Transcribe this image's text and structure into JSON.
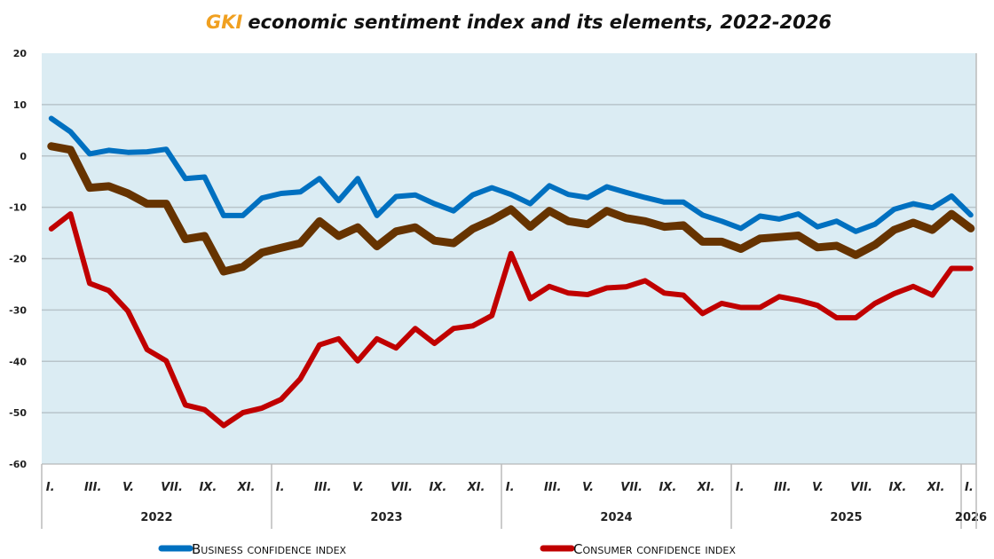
{
  "chart_data": {
    "type": "line",
    "title_brand": "GKI",
    "title": "economic sentiment index and its elements, 2022-2026",
    "ylim": [
      -60,
      20
    ],
    "yticks": [
      20,
      10,
      0,
      -10,
      -20,
      -30,
      -40,
      -50,
      -60
    ],
    "grid": true,
    "legend_position": "bottom",
    "years": [
      "2022",
      "2023",
      "2024",
      "2025",
      "2026"
    ],
    "month_labels": [
      "I.",
      "III.",
      "V.",
      "VII.",
      "IX.",
      "XI."
    ],
    "x_start": "2022-01",
    "x_end": "2026-01",
    "series": [
      {
        "name": "Business confidence index",
        "color": "#0070c0",
        "in_legend": true,
        "values": [
          7.3,
          4.7,
          0.4,
          1.1,
          0.7,
          0.8,
          1.3,
          -4.4,
          -4.1,
          -11.6,
          -11.6,
          -8.2,
          -7.3,
          -7.0,
          -4.4,
          -8.7,
          -4.4,
          -11.6,
          -7.9,
          -7.6,
          -9.3,
          -10.7,
          -7.6,
          -6.2,
          -7.5,
          -9.3,
          -5.8,
          -7.5,
          -8.1,
          -6.0,
          -7.1,
          -8.1,
          -9.0,
          -9.0,
          -11.5,
          -12.7,
          -14.1,
          -11.7,
          -12.3,
          -11.3,
          -13.8,
          -12.7,
          -14.7,
          -13.3,
          -10.4,
          -9.3,
          -10.1,
          -7.8,
          -11.5
        ]
      },
      {
        "color": "#663300",
        "in_legend": false,
        "values": [
          1.9,
          1.2,
          -6.2,
          -5.9,
          -7.3,
          -9.3,
          -9.3,
          -16.2,
          -15.6,
          -22.5,
          -21.6,
          -18.8,
          -17.9,
          -17.0,
          -12.7,
          -15.6,
          -13.9,
          -17.6,
          -14.7,
          -13.9,
          -16.5,
          -17.0,
          -14.2,
          -12.5,
          -10.4,
          -13.8,
          -10.7,
          -12.7,
          -13.3,
          -10.7,
          -12.1,
          -12.7,
          -13.8,
          -13.5,
          -16.7,
          -16.7,
          -18.1,
          -16.1,
          -15.8,
          -15.5,
          -17.8,
          -17.5,
          -19.3,
          -17.3,
          -14.4,
          -13.0,
          -14.4,
          -11.3,
          -14.1
        ]
      },
      {
        "name": "Consumer confidence index",
        "color": "#c00000",
        "in_legend": true,
        "values": [
          -14.2,
          -11.3,
          -24.8,
          -26.2,
          -30.2,
          -37.7,
          -39.9,
          -48.5,
          -49.4,
          -52.5,
          -50.0,
          -49.1,
          -47.4,
          -43.4,
          -36.8,
          -35.6,
          -39.9,
          -35.6,
          -37.4,
          -33.6,
          -36.5,
          -33.6,
          -33.1,
          -31.1,
          -19.0,
          -27.8,
          -25.4,
          -26.7,
          -27.0,
          -25.7,
          -25.5,
          -24.3,
          -26.7,
          -27.1,
          -30.7,
          -28.7,
          -29.5,
          -29.5,
          -27.4,
          -28.1,
          -29.1,
          -31.5,
          -31.5,
          -28.7,
          -26.8,
          -25.4,
          -27.1,
          -21.9,
          -21.9
        ]
      }
    ],
    "colors": {
      "brand": "#f0a020",
      "plot_background": "#dbecf3",
      "grid": "#b8c4ca"
    }
  }
}
